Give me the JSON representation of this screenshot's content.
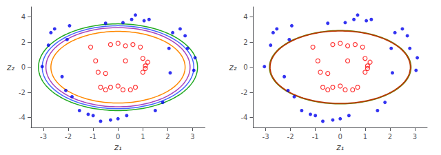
{
  "chart_data": [
    {
      "type": "scatter",
      "xlabel": "z₁",
      "ylabel": "z₂",
      "xlim": [
        -3.5,
        3.5
      ],
      "ylim": [
        -4.8,
        4.8
      ],
      "xticks": [
        -3,
        -2,
        -1,
        0,
        1,
        2,
        3
      ],
      "yticks": [
        -4,
        -2,
        0,
        2,
        4
      ],
      "grid": false,
      "series": [
        {
          "color": "#0000ee",
          "marker": "circle",
          "values": [
            [
              -3.05,
              0.05
            ],
            [
              -2.8,
              1.75
            ],
            [
              -2.7,
              2.75
            ],
            [
              -2.55,
              3.05
            ],
            [
              -2.25,
              -0.75
            ],
            [
              -2.1,
              -1.85
            ],
            [
              -2.05,
              2.2
            ],
            [
              -1.95,
              3.3
            ],
            [
              -1.85,
              -2.35
            ],
            [
              -1.55,
              -3.45
            ],
            [
              -1.2,
              -3.75
            ],
            [
              -1.0,
              -3.85
            ],
            [
              -0.7,
              -4.3
            ],
            [
              -0.3,
              -4.2
            ],
            [
              0.0,
              -4.1
            ],
            [
              0.35,
              -3.85
            ],
            [
              0.55,
              3.8
            ],
            [
              0.7,
              4.15
            ],
            [
              1.05,
              3.7
            ],
            [
              1.25,
              3.8
            ],
            [
              1.5,
              -3.45
            ],
            [
              1.8,
              -2.8
            ],
            [
              2.05,
              1.5
            ],
            [
              2.1,
              -0.45
            ],
            [
              2.2,
              2.75
            ],
            [
              2.5,
              3.05
            ],
            [
              2.7,
              2.5
            ],
            [
              2.8,
              1.5
            ],
            [
              3.05,
              -0.25
            ],
            [
              3.1,
              0.75
            ],
            [
              -0.5,
              3.5
            ],
            [
              0.2,
              3.55
            ]
          ]
        },
        {
          "color": "#ff0000",
          "marker": "open_circle",
          "values": [
            [
              -1.1,
              1.6
            ],
            [
              -0.9,
              0.5
            ],
            [
              -0.8,
              -0.4
            ],
            [
              -0.7,
              -1.6
            ],
            [
              -0.5,
              -1.8
            ],
            [
              -0.3,
              -1.6
            ],
            [
              0.0,
              -1.5
            ],
            [
              0.2,
              -1.8
            ],
            [
              0.5,
              -1.8
            ],
            [
              0.7,
              -1.6
            ],
            [
              -0.3,
              1.8
            ],
            [
              0.0,
              1.9
            ],
            [
              0.3,
              1.7
            ],
            [
              0.6,
              1.8
            ],
            [
              0.9,
              1.6
            ],
            [
              1.0,
              0.7
            ],
            [
              1.1,
              0.1
            ],
            [
              1.0,
              -0.4
            ],
            [
              1.2,
              0.4
            ],
            [
              1.1,
              -0.1
            ],
            [
              -0.5,
              -0.5
            ],
            [
              0.3,
              0.5
            ]
          ]
        }
      ],
      "ellipses": [
        {
          "cx": 0.0,
          "cy": 0.0,
          "a": 3.2,
          "b": 3.45,
          "color": "#22aa22"
        },
        {
          "cx": 0.0,
          "cy": 0.0,
          "a": 3.05,
          "b": 3.3,
          "color": "#4466ff"
        },
        {
          "cx": 0.0,
          "cy": 0.0,
          "a": 2.9,
          "b": 3.15,
          "color": "#aa44bb"
        },
        {
          "cx": 0.0,
          "cy": 0.0,
          "a": 2.7,
          "b": 2.85,
          "color": "#ff8800"
        }
      ]
    },
    {
      "type": "scatter",
      "xlabel": "z₁",
      "ylabel": "z₂",
      "xlim": [
        -3.5,
        3.5
      ],
      "ylim": [
        -4.8,
        4.8
      ],
      "xticks": [
        -3,
        -2,
        -1,
        0,
        1,
        2,
        3
      ],
      "yticks": [
        -4,
        -2,
        0,
        2,
        4
      ],
      "grid": false,
      "series": [
        {
          "color": "#0000ee",
          "marker": "circle",
          "values": [
            [
              -3.05,
              0.05
            ],
            [
              -2.8,
              1.75
            ],
            [
              -2.7,
              2.75
            ],
            [
              -2.55,
              3.05
            ],
            [
              -2.25,
              -0.75
            ],
            [
              -2.1,
              -1.85
            ],
            [
              -2.05,
              2.2
            ],
            [
              -1.95,
              3.3
            ],
            [
              -1.85,
              -2.35
            ],
            [
              -1.55,
              -3.45
            ],
            [
              -1.2,
              -3.75
            ],
            [
              -1.0,
              -3.85
            ],
            [
              -0.7,
              -4.3
            ],
            [
              -0.3,
              -4.2
            ],
            [
              0.0,
              -4.1
            ],
            [
              0.35,
              -3.85
            ],
            [
              0.55,
              3.8
            ],
            [
              0.7,
              4.15
            ],
            [
              1.05,
              3.7
            ],
            [
              1.25,
              3.8
            ],
            [
              1.5,
              -3.45
            ],
            [
              1.8,
              -2.8
            ],
            [
              2.05,
              1.5
            ],
            [
              2.1,
              -0.45
            ],
            [
              2.2,
              2.75
            ],
            [
              2.5,
              3.05
            ],
            [
              2.7,
              2.5
            ],
            [
              2.8,
              1.5
            ],
            [
              3.05,
              -0.25
            ],
            [
              3.1,
              0.75
            ],
            [
              -0.5,
              3.5
            ],
            [
              0.2,
              3.55
            ]
          ]
        },
        {
          "color": "#ff0000",
          "marker": "open_circle",
          "values": [
            [
              -1.1,
              1.6
            ],
            [
              -0.9,
              0.5
            ],
            [
              -0.8,
              -0.4
            ],
            [
              -0.7,
              -1.6
            ],
            [
              -0.5,
              -1.8
            ],
            [
              -0.3,
              -1.6
            ],
            [
              0.0,
              -1.5
            ],
            [
              0.2,
              -1.8
            ],
            [
              0.5,
              -1.8
            ],
            [
              0.7,
              -1.6
            ],
            [
              -0.3,
              1.8
            ],
            [
              0.0,
              1.9
            ],
            [
              0.3,
              1.7
            ],
            [
              0.6,
              1.8
            ],
            [
              0.9,
              1.6
            ],
            [
              1.0,
              0.7
            ],
            [
              1.1,
              0.1
            ],
            [
              1.0,
              -0.4
            ],
            [
              1.2,
              0.4
            ],
            [
              1.1,
              -0.1
            ],
            [
              -0.5,
              -0.5
            ],
            [
              0.3,
              0.5
            ]
          ]
        }
      ],
      "ellipses": [
        {
          "cx": 0.0,
          "cy": 0.0,
          "a": 2.85,
          "b": 2.92,
          "color": "#777700"
        },
        {
          "cx": 0.0,
          "cy": 0.0,
          "a": 2.82,
          "b": 2.88,
          "color": "#bb3300"
        }
      ]
    }
  ]
}
